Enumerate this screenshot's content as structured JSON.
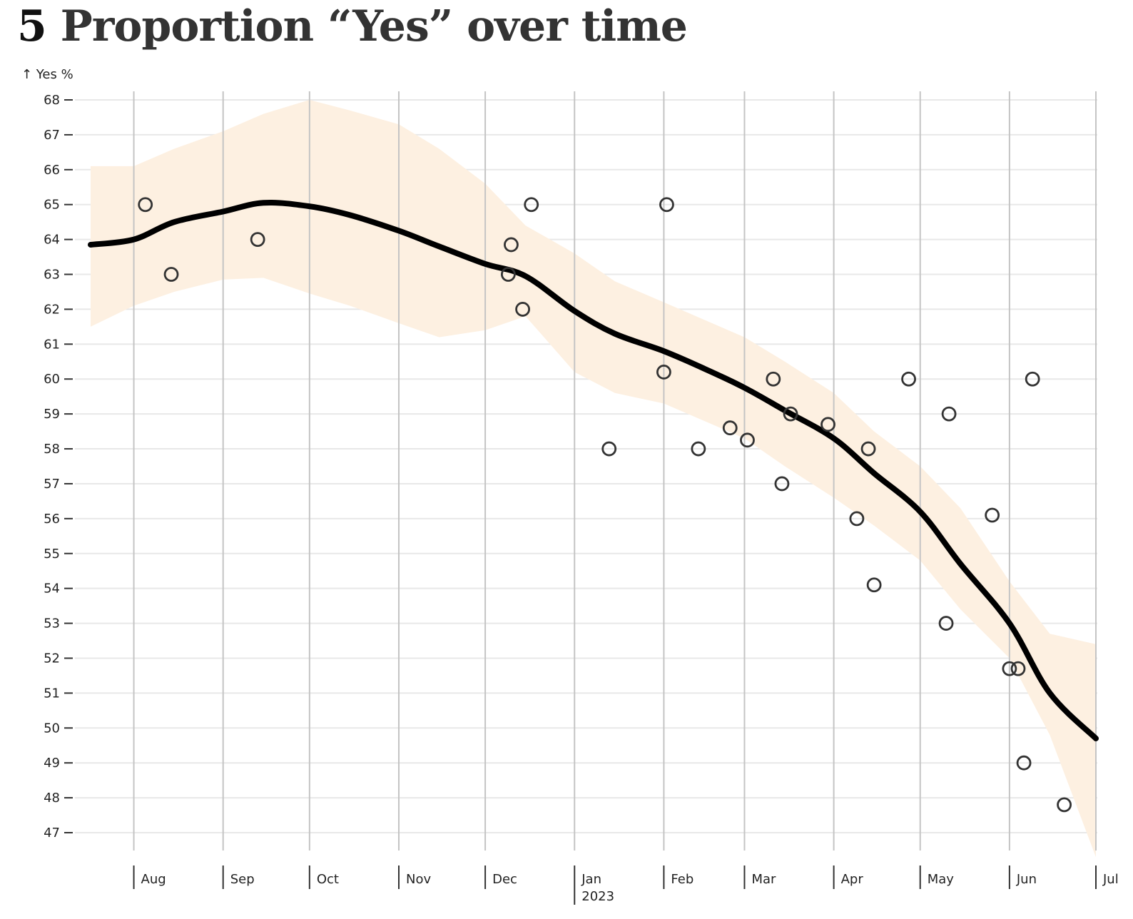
{
  "figure": {
    "number": "5",
    "title": "Proportion “Yes” over time"
  },
  "colors": {
    "band": "#fdf0e1",
    "trend": "#000000",
    "poll_stroke": "#333333",
    "grid": "#e8e8e8",
    "month_rule": "#c4c4c4"
  },
  "chart_data": {
    "type": "scatter",
    "title": "Proportion “Yes” over time",
    "ylabel": "↑ Yes %",
    "xlabel": "",
    "ylim": [
      47,
      68
    ],
    "xlim": [
      "2022-07-17",
      "2023-07-01"
    ],
    "yticks": [
      47,
      48,
      49,
      50,
      51,
      52,
      53,
      54,
      55,
      56,
      57,
      58,
      59,
      60,
      61,
      62,
      63,
      64,
      65,
      66,
      67,
      68
    ],
    "xticks": [
      {
        "date": "2022-08-01",
        "label": "Aug"
      },
      {
        "date": "2022-09-01",
        "label": "Sep"
      },
      {
        "date": "2022-10-01",
        "label": "Oct"
      },
      {
        "date": "2022-11-01",
        "label": "Nov"
      },
      {
        "date": "2022-12-01",
        "label": "Dec"
      },
      {
        "date": "2023-01-01",
        "label": "Jan",
        "sublabel": "2023"
      },
      {
        "date": "2023-02-01",
        "label": "Feb"
      },
      {
        "date": "2023-03-01",
        "label": "Mar"
      },
      {
        "date": "2023-04-01",
        "label": "Apr"
      },
      {
        "date": "2023-05-01",
        "label": "May"
      },
      {
        "date": "2023-06-01",
        "label": "Jun"
      },
      {
        "date": "2023-07-01",
        "label": "Jul"
      }
    ],
    "grid": true,
    "points": [
      {
        "x": "2022-08-05",
        "y": 65.0
      },
      {
        "x": "2022-08-14",
        "y": 63.0
      },
      {
        "x": "2022-09-13",
        "y": 64.0
      },
      {
        "x": "2022-12-09",
        "y": 63.0
      },
      {
        "x": "2022-12-10",
        "y": 63.85
      },
      {
        "x": "2022-12-14",
        "y": 62.0
      },
      {
        "x": "2022-12-17",
        "y": 65.0
      },
      {
        "x": "2023-01-13",
        "y": 58.0
      },
      {
        "x": "2023-02-01",
        "y": 60.2
      },
      {
        "x": "2023-02-02",
        "y": 65.0
      },
      {
        "x": "2023-02-13",
        "y": 58.0
      },
      {
        "x": "2023-02-24",
        "y": 58.6
      },
      {
        "x": "2023-03-02",
        "y": 58.25
      },
      {
        "x": "2023-03-11",
        "y": 60.0
      },
      {
        "x": "2023-03-14",
        "y": 57.0
      },
      {
        "x": "2023-03-17",
        "y": 59.0
      },
      {
        "x": "2023-03-30",
        "y": 58.7
      },
      {
        "x": "2023-04-09",
        "y": 56.0
      },
      {
        "x": "2023-04-13",
        "y": 58.0
      },
      {
        "x": "2023-04-15",
        "y": 54.1
      },
      {
        "x": "2023-04-27",
        "y": 60.0
      },
      {
        "x": "2023-05-10",
        "y": 53.0
      },
      {
        "x": "2023-05-11",
        "y": 59.0
      },
      {
        "x": "2023-05-26",
        "y": 56.1
      },
      {
        "x": "2023-06-01",
        "y": 51.7
      },
      {
        "x": "2023-06-04",
        "y": 51.7
      },
      {
        "x": "2023-06-06",
        "y": 49.0
      },
      {
        "x": "2023-06-09",
        "y": 60.0
      },
      {
        "x": "2023-06-20",
        "y": 47.8
      }
    ],
    "trend": {
      "x": [
        "2022-07-17",
        "2022-08-01",
        "2022-08-15",
        "2022-09-01",
        "2022-09-15",
        "2022-10-01",
        "2022-10-15",
        "2022-11-01",
        "2022-11-15",
        "2022-12-01",
        "2022-12-15",
        "2023-01-01",
        "2023-01-15",
        "2023-02-01",
        "2023-02-15",
        "2023-03-01",
        "2023-03-15",
        "2023-04-01",
        "2023-04-15",
        "2023-05-01",
        "2023-05-15",
        "2023-06-01",
        "2023-06-15",
        "2023-07-01"
      ],
      "y": [
        63.85,
        64.0,
        64.5,
        64.8,
        65.05,
        64.95,
        64.7,
        64.25,
        63.8,
        63.3,
        62.95,
        61.95,
        61.3,
        60.8,
        60.3,
        59.75,
        59.1,
        58.3,
        57.3,
        56.2,
        54.7,
        53.0,
        51.0,
        49.7
      ]
    },
    "band": {
      "x": [
        "2022-07-17",
        "2022-08-01",
        "2022-08-15",
        "2022-09-01",
        "2022-09-15",
        "2022-10-01",
        "2022-10-15",
        "2022-11-01",
        "2022-11-15",
        "2022-12-01",
        "2022-12-15",
        "2023-01-01",
        "2023-01-15",
        "2023-02-01",
        "2023-02-15",
        "2023-03-01",
        "2023-03-15",
        "2023-04-01",
        "2023-04-15",
        "2023-05-01",
        "2023-05-15",
        "2023-06-01",
        "2023-06-15",
        "2023-07-01"
      ],
      "upper": [
        66.1,
        66.1,
        66.6,
        67.1,
        67.6,
        68.0,
        67.7,
        67.3,
        66.6,
        65.6,
        64.4,
        63.6,
        62.8,
        62.2,
        61.7,
        61.2,
        60.5,
        59.6,
        58.5,
        57.5,
        56.3,
        54.2,
        52.7,
        52.4
      ],
      "lower": [
        61.5,
        62.1,
        62.5,
        62.85,
        62.9,
        62.45,
        62.1,
        61.6,
        61.2,
        61.4,
        61.8,
        60.2,
        59.6,
        59.3,
        58.8,
        58.3,
        57.5,
        56.6,
        55.8,
        54.8,
        53.4,
        52.0,
        49.8,
        46.3
      ]
    }
  }
}
